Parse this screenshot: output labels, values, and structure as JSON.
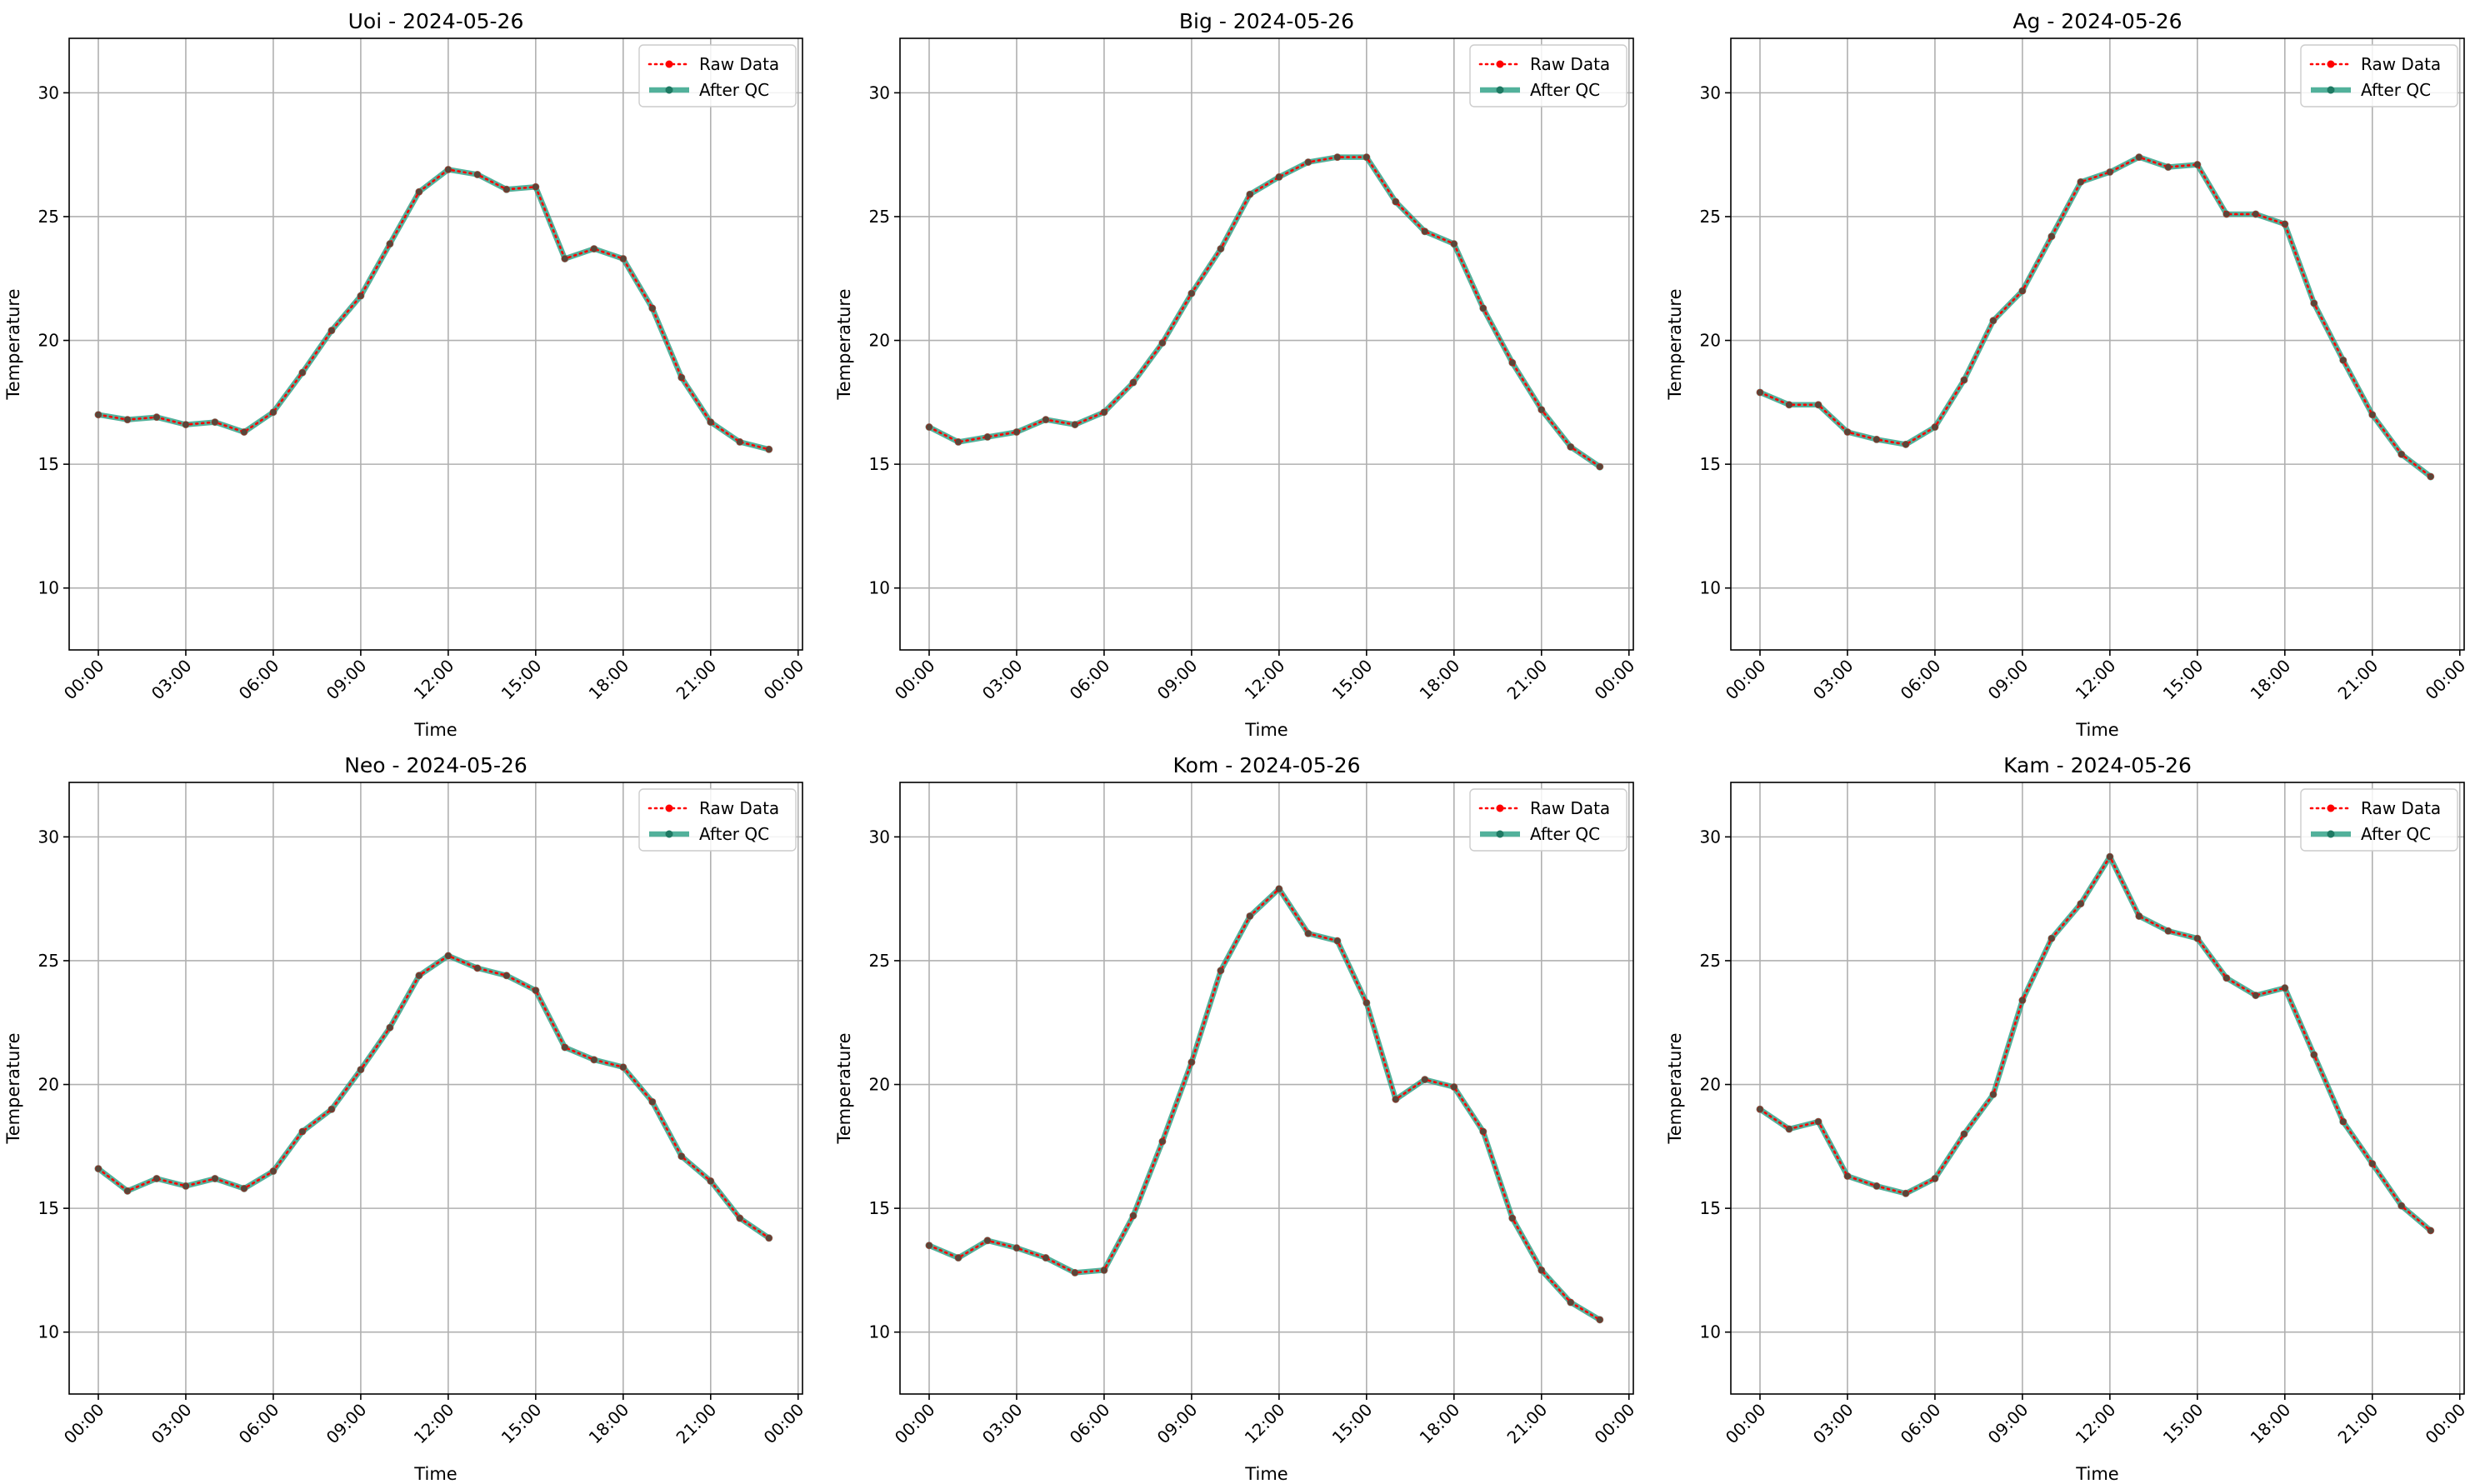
{
  "chart_data": [
    {
      "type": "line",
      "title": "Uoi - 2024-05-26",
      "xlabel": "Time",
      "ylabel": "Temperature",
      "ylim": [
        7.5,
        32.2
      ],
      "xlim": [
        "2024-05-25 23:00",
        "2024-05-27 00:09"
      ],
      "yticks": [
        10,
        15,
        20,
        25,
        30
      ],
      "xticks": [
        "00:00",
        "03:00",
        "06:00",
        "09:00",
        "12:00",
        "15:00",
        "18:00",
        "21:00",
        "00:00"
      ],
      "grid": true,
      "legend": "top-right",
      "x": [
        "00:00",
        "01:00",
        "02:00",
        "03:00",
        "04:00",
        "05:00",
        "06:00",
        "07:00",
        "08:00",
        "09:00",
        "10:00",
        "11:00",
        "12:00",
        "13:00",
        "14:00",
        "15:00",
        "16:00",
        "17:00",
        "18:00",
        "19:00",
        "20:00",
        "21:00",
        "22:00",
        "23:00"
      ],
      "series": [
        {
          "name": "Raw Data",
          "color": "#ff0000",
          "values": [
            17.0,
            16.8,
            16.9,
            16.6,
            16.7,
            16.3,
            17.1,
            18.7,
            20.4,
            21.8,
            23.9,
            26.0,
            26.9,
            26.7,
            26.1,
            26.2,
            23.3,
            23.7,
            23.3,
            21.3,
            18.5,
            16.7,
            15.9,
            15.6
          ]
        },
        {
          "name": "After QC",
          "color": "#2ca085",
          "values": [
            17.0,
            16.8,
            16.9,
            16.6,
            16.7,
            16.3,
            17.1,
            18.7,
            20.4,
            21.8,
            23.9,
            26.0,
            26.9,
            26.7,
            26.1,
            26.2,
            23.3,
            23.7,
            23.3,
            21.3,
            18.5,
            16.7,
            15.9,
            15.6
          ]
        }
      ]
    },
    {
      "type": "line",
      "title": "Big - 2024-05-26",
      "xlabel": "Time",
      "ylabel": "Temperature",
      "ylim": [
        7.5,
        32.2
      ],
      "xlim": [
        "2024-05-25 23:00",
        "2024-05-27 00:09"
      ],
      "yticks": [
        10,
        15,
        20,
        25,
        30
      ],
      "xticks": [
        "00:00",
        "03:00",
        "06:00",
        "09:00",
        "12:00",
        "15:00",
        "18:00",
        "21:00",
        "00:00"
      ],
      "grid": true,
      "legend": "top-right",
      "x": [
        "00:00",
        "01:00",
        "02:00",
        "03:00",
        "04:00",
        "05:00",
        "06:00",
        "07:00",
        "08:00",
        "09:00",
        "10:00",
        "11:00",
        "12:00",
        "13:00",
        "14:00",
        "15:00",
        "16:00",
        "17:00",
        "18:00",
        "19:00",
        "20:00",
        "21:00",
        "22:00",
        "23:00"
      ],
      "series": [
        {
          "name": "Raw Data",
          "color": "#ff0000",
          "values": [
            16.5,
            15.9,
            16.1,
            16.3,
            16.8,
            16.6,
            17.1,
            18.3,
            19.9,
            21.9,
            23.7,
            25.9,
            26.6,
            27.2,
            27.4,
            27.4,
            25.6,
            24.4,
            23.9,
            21.3,
            19.1,
            17.2,
            15.7,
            14.9
          ]
        },
        {
          "name": "After QC",
          "color": "#2ca085",
          "values": [
            16.5,
            15.9,
            16.1,
            16.3,
            16.8,
            16.6,
            17.1,
            18.3,
            19.9,
            21.9,
            23.7,
            25.9,
            26.6,
            27.2,
            27.4,
            27.4,
            25.6,
            24.4,
            23.9,
            21.3,
            19.1,
            17.2,
            15.7,
            14.9
          ]
        }
      ]
    },
    {
      "type": "line",
      "title": "Ag - 2024-05-26",
      "xlabel": "Time",
      "ylabel": "Temperature",
      "ylim": [
        7.5,
        32.2
      ],
      "xlim": [
        "2024-05-25 23:00",
        "2024-05-27 00:09"
      ],
      "yticks": [
        10,
        15,
        20,
        25,
        30
      ],
      "xticks": [
        "00:00",
        "03:00",
        "06:00",
        "09:00",
        "12:00",
        "15:00",
        "18:00",
        "21:00",
        "00:00"
      ],
      "grid": true,
      "legend": "top-right",
      "x": [
        "00:00",
        "01:00",
        "02:00",
        "03:00",
        "04:00",
        "05:00",
        "06:00",
        "07:00",
        "08:00",
        "09:00",
        "10:00",
        "11:00",
        "12:00",
        "13:00",
        "14:00",
        "15:00",
        "16:00",
        "17:00",
        "18:00",
        "19:00",
        "20:00",
        "21:00",
        "22:00",
        "23:00"
      ],
      "series": [
        {
          "name": "Raw Data",
          "color": "#ff0000",
          "values": [
            17.9,
            17.4,
            17.4,
            16.3,
            16.0,
            15.8,
            16.5,
            18.4,
            20.8,
            22.0,
            24.2,
            26.4,
            26.8,
            27.4,
            27.0,
            27.1,
            25.1,
            25.1,
            24.7,
            21.5,
            19.2,
            17.0,
            15.4,
            14.5
          ]
        },
        {
          "name": "After QC",
          "color": "#2ca085",
          "values": [
            17.9,
            17.4,
            17.4,
            16.3,
            16.0,
            15.8,
            16.5,
            18.4,
            20.8,
            22.0,
            24.2,
            26.4,
            26.8,
            27.4,
            27.0,
            27.1,
            25.1,
            25.1,
            24.7,
            21.5,
            19.2,
            17.0,
            15.4,
            14.5
          ]
        }
      ]
    },
    {
      "type": "line",
      "title": "Neo - 2024-05-26",
      "xlabel": "Time",
      "ylabel": "Temperature",
      "ylim": [
        7.5,
        32.2
      ],
      "xlim": [
        "2024-05-25 23:00",
        "2024-05-27 00:09"
      ],
      "yticks": [
        10,
        15,
        20,
        25,
        30
      ],
      "xticks": [
        "00:00",
        "03:00",
        "06:00",
        "09:00",
        "12:00",
        "15:00",
        "18:00",
        "21:00",
        "00:00"
      ],
      "grid": true,
      "legend": "top-right",
      "x": [
        "00:00",
        "01:00",
        "02:00",
        "03:00",
        "04:00",
        "05:00",
        "06:00",
        "07:00",
        "08:00",
        "09:00",
        "10:00",
        "11:00",
        "12:00",
        "13:00",
        "14:00",
        "15:00",
        "16:00",
        "17:00",
        "18:00",
        "19:00",
        "20:00",
        "21:00",
        "22:00",
        "23:00"
      ],
      "series": [
        {
          "name": "Raw Data",
          "color": "#ff0000",
          "values": [
            16.6,
            15.7,
            16.2,
            15.9,
            16.2,
            15.8,
            16.5,
            18.1,
            19.0,
            20.6,
            22.3,
            24.4,
            25.2,
            24.7,
            24.4,
            23.8,
            21.5,
            21.0,
            20.7,
            19.3,
            17.1,
            16.1,
            14.6,
            13.8
          ]
        },
        {
          "name": "After QC",
          "color": "#2ca085",
          "values": [
            16.6,
            15.7,
            16.2,
            15.9,
            16.2,
            15.8,
            16.5,
            18.1,
            19.0,
            20.6,
            22.3,
            24.4,
            25.2,
            24.7,
            24.4,
            23.8,
            21.5,
            21.0,
            20.7,
            19.3,
            17.1,
            16.1,
            14.6,
            13.8
          ]
        }
      ]
    },
    {
      "type": "line",
      "title": "Kom - 2024-05-26",
      "xlabel": "Time",
      "ylabel": "Temperature",
      "ylim": [
        7.5,
        32.2
      ],
      "xlim": [
        "2024-05-25 23:00",
        "2024-05-27 00:09"
      ],
      "yticks": [
        10,
        15,
        20,
        25,
        30
      ],
      "xticks": [
        "00:00",
        "03:00",
        "06:00",
        "09:00",
        "12:00",
        "15:00",
        "18:00",
        "21:00",
        "00:00"
      ],
      "grid": true,
      "legend": "top-right",
      "x": [
        "00:00",
        "01:00",
        "02:00",
        "03:00",
        "04:00",
        "05:00",
        "06:00",
        "07:00",
        "08:00",
        "09:00",
        "10:00",
        "11:00",
        "12:00",
        "13:00",
        "14:00",
        "15:00",
        "16:00",
        "17:00",
        "18:00",
        "19:00",
        "20:00",
        "21:00",
        "22:00",
        "23:00"
      ],
      "series": [
        {
          "name": "Raw Data",
          "color": "#ff0000",
          "values": [
            13.5,
            13.0,
            13.7,
            13.4,
            13.0,
            12.4,
            12.5,
            14.7,
            17.7,
            20.9,
            24.6,
            26.8,
            27.9,
            26.1,
            25.8,
            23.3,
            19.4,
            20.2,
            19.9,
            18.1,
            14.6,
            12.5,
            11.2,
            10.5
          ]
        },
        {
          "name": "After QC",
          "color": "#2ca085",
          "values": [
            13.5,
            13.0,
            13.7,
            13.4,
            13.0,
            12.4,
            12.5,
            14.7,
            17.7,
            20.9,
            24.6,
            26.8,
            27.9,
            26.1,
            25.8,
            23.3,
            19.4,
            20.2,
            19.9,
            18.1,
            14.6,
            12.5,
            11.2,
            10.5
          ]
        }
      ]
    },
    {
      "type": "line",
      "title": "Kam - 2024-05-26",
      "xlabel": "Time",
      "ylabel": "Temperature",
      "ylim": [
        7.5,
        32.2
      ],
      "xlim": [
        "2024-05-25 23:00",
        "2024-05-27 00:09"
      ],
      "yticks": [
        10,
        15,
        20,
        25,
        30
      ],
      "xticks": [
        "00:00",
        "03:00",
        "06:00",
        "09:00",
        "12:00",
        "15:00",
        "18:00",
        "21:00",
        "00:00"
      ],
      "grid": true,
      "legend": "top-right",
      "x": [
        "00:00",
        "01:00",
        "02:00",
        "03:00",
        "04:00",
        "05:00",
        "06:00",
        "07:00",
        "08:00",
        "09:00",
        "10:00",
        "11:00",
        "12:00",
        "13:00",
        "14:00",
        "15:00",
        "16:00",
        "17:00",
        "18:00",
        "19:00",
        "20:00",
        "21:00",
        "22:00",
        "23:00"
      ],
      "series": [
        {
          "name": "Raw Data",
          "color": "#ff0000",
          "values": [
            19.0,
            18.2,
            18.5,
            16.3,
            15.9,
            15.6,
            16.2,
            18.0,
            19.6,
            23.4,
            25.9,
            27.3,
            29.2,
            26.8,
            26.2,
            25.9,
            24.3,
            23.6,
            23.9,
            21.2,
            18.5,
            16.8,
            15.1,
            14.1
          ]
        },
        {
          "name": "After QC",
          "color": "#2ca085",
          "values": [
            19.0,
            18.2,
            18.5,
            16.3,
            15.9,
            15.6,
            16.2,
            18.0,
            19.6,
            23.4,
            25.9,
            27.3,
            29.2,
            26.8,
            26.2,
            25.9,
            24.3,
            23.6,
            23.9,
            21.2,
            18.5,
            16.8,
            15.1,
            14.1
          ]
        }
      ]
    }
  ]
}
